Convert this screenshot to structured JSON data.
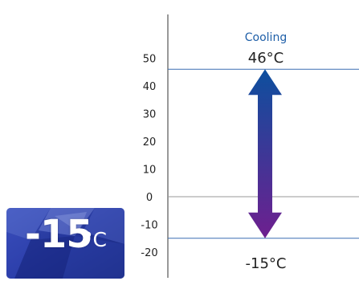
{
  "badge": {
    "value": "-15",
    "unit": "°C"
  },
  "colors": {
    "accent_blue": "#1f5fa8",
    "line_blue": "#3a6fb3",
    "arrow_top": "#0d4f9e",
    "arrow_bottom": "#6e1f8f",
    "axis": "#333333",
    "zero_line": "#999999"
  },
  "chart_data": {
    "type": "range-arrow",
    "mode_label": "Cooling",
    "max": 46,
    "min": -15,
    "max_label": "46°C",
    "min_label": "-15°C",
    "ylim": [
      -24,
      60
    ],
    "yticks": [
      50,
      40,
      30,
      20,
      10,
      0,
      -10,
      -20
    ],
    "grid": false
  }
}
